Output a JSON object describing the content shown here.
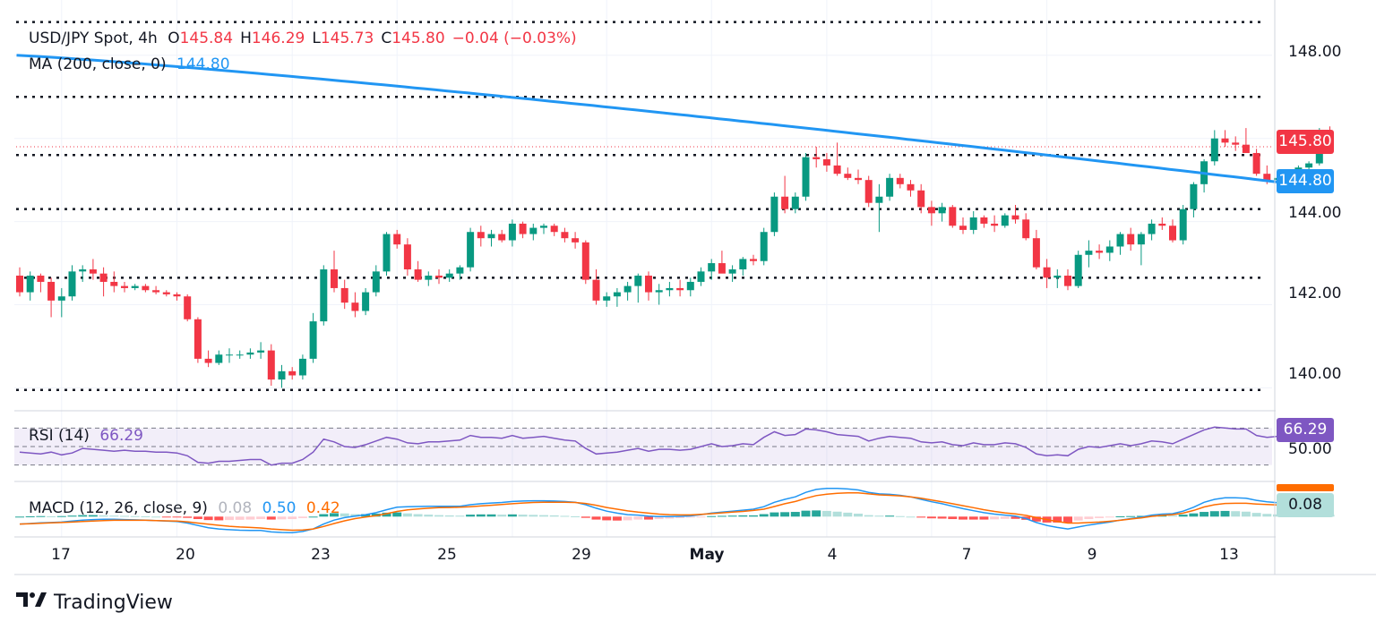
{
  "header": {
    "symbol": "USD/JPY Spot, 4h",
    "open_label": "O",
    "open": "145.84",
    "high_label": "H",
    "high": "146.29",
    "low_label": "L",
    "low": "145.73",
    "close_label": "C",
    "close": "145.80",
    "change": "−0.04 (−0.03%)"
  },
  "ma_legend": {
    "label": "MA (200, close, 0)",
    "value": "144.80"
  },
  "rsi_legend": {
    "label": "RSI (14)",
    "value": "66.29"
  },
  "macd_legend": {
    "label": "MACD (12, 26, close, 9)",
    "hist": "0.08",
    "macd": "0.50",
    "signal": "0.42"
  },
  "price_tags": {
    "last": "145.80",
    "ma": "144.80",
    "rsi": "66.29",
    "macd": "0.08",
    "rsi_axis": "50.00"
  },
  "colors": {
    "up": "#089981",
    "down": "#f23645",
    "ma": "#2196f3",
    "rsi": "#7e57c2",
    "signal": "#ff6d00",
    "macd_line": "#2196f3"
  },
  "brand": {
    "name": "TradingView"
  },
  "chart_data": {
    "type": "candlestick",
    "title": "USD/JPY Spot, 4h",
    "y_ticks": [
      "148.00",
      "144.00",
      "142.00",
      "140.00"
    ],
    "ylim": [
      139.6,
      148.9
    ],
    "x_ticks": [
      "17",
      "20",
      "23",
      "25",
      "29",
      "May",
      "4",
      "7",
      "9",
      "13"
    ],
    "x_tick_bar_index": [
      4,
      15,
      26,
      36,
      47,
      56,
      66,
      77,
      87,
      98
    ],
    "horizontal_levels": [
      148.8,
      147.0,
      145.6,
      144.3,
      142.65,
      139.95
    ],
    "ohlc": [
      [
        142.7,
        142.9,
        142.2,
        142.3
      ],
      [
        142.3,
        142.8,
        142.1,
        142.7
      ],
      [
        142.7,
        142.75,
        142.3,
        142.55
      ],
      [
        142.55,
        142.65,
        141.7,
        142.1
      ],
      [
        142.1,
        142.4,
        141.7,
        142.2
      ],
      [
        142.2,
        142.95,
        142.1,
        142.8
      ],
      [
        142.8,
        142.95,
        142.55,
        142.85
      ],
      [
        142.85,
        143.1,
        142.6,
        142.75
      ],
      [
        142.75,
        142.9,
        142.2,
        142.55
      ],
      [
        142.55,
        142.8,
        142.3,
        142.45
      ],
      [
        142.45,
        142.55,
        142.3,
        142.4
      ],
      [
        142.4,
        142.5,
        142.35,
        142.45
      ],
      [
        142.45,
        142.5,
        142.3,
        142.35
      ],
      [
        142.35,
        142.45,
        142.25,
        142.3
      ],
      [
        142.3,
        142.35,
        142.2,
        142.25
      ],
      [
        142.25,
        142.3,
        142.1,
        142.2
      ],
      [
        142.2,
        142.25,
        141.6,
        141.65
      ],
      [
        141.65,
        141.7,
        140.6,
        140.7
      ],
      [
        140.7,
        140.9,
        140.5,
        140.6
      ],
      [
        140.6,
        140.9,
        140.55,
        140.8
      ],
      [
        140.8,
        140.95,
        140.6,
        140.8
      ],
      [
        140.8,
        140.9,
        140.7,
        140.8
      ],
      [
        140.8,
        140.95,
        140.7,
        140.85
      ],
      [
        140.85,
        141.1,
        140.7,
        140.9
      ],
      [
        140.9,
        141.05,
        140.05,
        140.2
      ],
      [
        140.2,
        140.55,
        140.0,
        140.4
      ],
      [
        140.4,
        140.5,
        140.2,
        140.3
      ],
      [
        140.3,
        140.8,
        140.2,
        140.7
      ],
      [
        140.7,
        141.8,
        140.6,
        141.6
      ],
      [
        141.6,
        142.95,
        141.5,
        142.85
      ],
      [
        142.85,
        143.3,
        142.3,
        142.4
      ],
      [
        142.4,
        142.6,
        141.9,
        142.05
      ],
      [
        142.05,
        142.3,
        141.7,
        141.85
      ],
      [
        141.85,
        142.4,
        141.75,
        142.3
      ],
      [
        142.3,
        142.95,
        142.2,
        142.8
      ],
      [
        142.8,
        143.75,
        142.7,
        143.7
      ],
      [
        143.7,
        143.8,
        143.35,
        143.45
      ],
      [
        143.45,
        143.6,
        142.7,
        142.85
      ],
      [
        142.85,
        143.05,
        142.55,
        142.6
      ],
      [
        142.6,
        142.8,
        142.45,
        142.7
      ],
      [
        142.7,
        142.85,
        142.5,
        142.65
      ],
      [
        142.65,
        142.85,
        142.55,
        142.75
      ],
      [
        142.75,
        142.95,
        142.6,
        142.9
      ],
      [
        142.9,
        143.85,
        142.8,
        143.75
      ],
      [
        143.75,
        143.9,
        143.4,
        143.6
      ],
      [
        143.6,
        143.8,
        143.4,
        143.7
      ],
      [
        143.7,
        143.8,
        143.5,
        143.55
      ],
      [
        143.55,
        144.05,
        143.4,
        143.95
      ],
      [
        143.95,
        144.0,
        143.6,
        143.7
      ],
      [
        143.7,
        143.95,
        143.55,
        143.85
      ],
      [
        143.85,
        143.95,
        143.7,
        143.9
      ],
      [
        143.9,
        143.95,
        143.65,
        143.75
      ],
      [
        143.75,
        143.85,
        143.5,
        143.6
      ],
      [
        143.6,
        143.75,
        143.35,
        143.5
      ],
      [
        143.5,
        143.55,
        142.5,
        142.6
      ],
      [
        142.6,
        142.85,
        142.0,
        142.1
      ],
      [
        142.1,
        142.3,
        141.95,
        142.2
      ],
      [
        142.2,
        142.4,
        141.95,
        142.3
      ],
      [
        142.3,
        142.55,
        142.1,
        142.45
      ],
      [
        142.45,
        142.75,
        142.05,
        142.7
      ],
      [
        142.7,
        142.8,
        142.1,
        142.3
      ],
      [
        142.3,
        142.5,
        142.0,
        142.35
      ],
      [
        142.35,
        142.55,
        142.2,
        142.4
      ],
      [
        142.4,
        142.6,
        142.2,
        142.35
      ],
      [
        142.35,
        142.65,
        142.2,
        142.55
      ],
      [
        142.55,
        142.9,
        142.45,
        142.8
      ],
      [
        142.8,
        143.1,
        142.6,
        143.0
      ],
      [
        143.0,
        143.3,
        142.8,
        142.75
      ],
      [
        142.75,
        142.95,
        142.55,
        142.85
      ],
      [
        142.85,
        143.15,
        142.7,
        143.1
      ],
      [
        143.1,
        143.2,
        142.95,
        143.05
      ],
      [
        143.05,
        143.85,
        142.95,
        143.75
      ],
      [
        143.75,
        144.7,
        143.65,
        144.6
      ],
      [
        144.6,
        145.1,
        144.2,
        144.3
      ],
      [
        144.3,
        144.7,
        144.2,
        144.6
      ],
      [
        144.6,
        145.65,
        144.5,
        145.55
      ],
      [
        145.55,
        145.8,
        145.3,
        145.5
      ],
      [
        145.5,
        145.65,
        145.2,
        145.35
      ],
      [
        145.35,
        145.9,
        145.1,
        145.15
      ],
      [
        145.15,
        145.3,
        145.0,
        145.05
      ],
      [
        145.05,
        145.25,
        144.9,
        145.0
      ],
      [
        145.0,
        145.1,
        144.35,
        144.45
      ],
      [
        144.45,
        144.9,
        143.75,
        144.6
      ],
      [
        144.6,
        145.15,
        144.5,
        145.05
      ],
      [
        145.05,
        145.15,
        144.8,
        144.9
      ],
      [
        144.9,
        145.0,
        144.6,
        144.75
      ],
      [
        144.75,
        144.9,
        144.2,
        144.35
      ],
      [
        144.35,
        144.5,
        143.9,
        144.2
      ],
      [
        144.2,
        144.45,
        144.0,
        144.35
      ],
      [
        144.35,
        144.4,
        143.85,
        143.9
      ],
      [
        143.9,
        144.1,
        143.7,
        143.8
      ],
      [
        143.8,
        144.25,
        143.7,
        144.1
      ],
      [
        144.1,
        144.15,
        143.85,
        143.95
      ],
      [
        143.95,
        144.15,
        143.75,
        143.9
      ],
      [
        143.9,
        144.2,
        143.85,
        144.15
      ],
      [
        144.15,
        144.4,
        143.95,
        144.05
      ],
      [
        144.05,
        144.2,
        143.55,
        143.6
      ],
      [
        143.6,
        143.8,
        142.85,
        142.9
      ],
      [
        142.9,
        143.1,
        142.4,
        142.65
      ],
      [
        142.65,
        142.85,
        142.4,
        142.7
      ],
      [
        142.7,
        142.85,
        142.35,
        142.45
      ],
      [
        142.45,
        143.3,
        142.4,
        143.2
      ],
      [
        143.2,
        143.55,
        142.9,
        143.3
      ],
      [
        143.3,
        143.45,
        143.1,
        143.25
      ],
      [
        143.25,
        143.55,
        143.05,
        143.4
      ],
      [
        143.4,
        143.75,
        143.2,
        143.7
      ],
      [
        143.7,
        143.85,
        143.3,
        143.45
      ],
      [
        143.45,
        143.75,
        142.95,
        143.7
      ],
      [
        143.7,
        144.05,
        143.55,
        143.95
      ],
      [
        143.95,
        144.1,
        143.8,
        143.9
      ],
      [
        143.9,
        144.05,
        143.5,
        143.55
      ],
      [
        143.55,
        144.4,
        143.45,
        144.3
      ],
      [
        144.3,
        144.95,
        144.1,
        144.9
      ],
      [
        144.9,
        145.5,
        144.7,
        145.45
      ],
      [
        145.45,
        146.2,
        145.35,
        146.0
      ],
      [
        146.0,
        146.2,
        145.8,
        145.9
      ],
      [
        145.9,
        146.05,
        145.7,
        145.85
      ],
      [
        145.85,
        146.25,
        145.65,
        145.65
      ],
      [
        145.65,
        145.75,
        145.1,
        145.15
      ],
      [
        145.15,
        145.35,
        144.9,
        145.0
      ],
      [
        145.0,
        145.25,
        144.8,
        145.05
      ],
      [
        145.05,
        145.2,
        144.95,
        145.1
      ],
      [
        145.1,
        145.35,
        145.0,
        145.3
      ],
      [
        145.3,
        145.45,
        145.15,
        145.4
      ],
      [
        145.4,
        146.25,
        145.35,
        145.84
      ],
      [
        145.84,
        146.29,
        145.73,
        145.8
      ]
    ],
    "ma200": {
      "label": "MA (200, close, 0)",
      "start": 148.0,
      "end": 144.8
    },
    "rsi": {
      "label": "RSI (14)",
      "ylim": [
        20,
        80
      ],
      "levels": [
        70,
        50,
        30
      ],
      "values": [
        44,
        43,
        42,
        44,
        41,
        43,
        48,
        47,
        46,
        45,
        46,
        45,
        45,
        44,
        44,
        43,
        40,
        33,
        32,
        34,
        34,
        35,
        36,
        36,
        30,
        32,
        32,
        36,
        44,
        58,
        55,
        50,
        49,
        52,
        56,
        60,
        58,
        54,
        53,
        55,
        55,
        56,
        57,
        62,
        60,
        60,
        59,
        62,
        59,
        60,
        61,
        59,
        57,
        56,
        48,
        42,
        43,
        44,
        46,
        48,
        45,
        47,
        47,
        46,
        47,
        50,
        53,
        50,
        51,
        53,
        52,
        60,
        66,
        62,
        63,
        69,
        68,
        66,
        63,
        62,
        61,
        56,
        59,
        61,
        60,
        59,
        55,
        54,
        55,
        52,
        51,
        54,
        52,
        52,
        54,
        53,
        49,
        42,
        40,
        41,
        40,
        47,
        50,
        49,
        51,
        53,
        51,
        53,
        56,
        55,
        53,
        58,
        63,
        68,
        71,
        70,
        69,
        69,
        62,
        60,
        61,
        61,
        62,
        63,
        67,
        66.29
      ]
    },
    "macd": {
      "label": "MACD (12, 26, close, 9)",
      "ylim": [
        -0.75,
        1.35
      ],
      "hist": [
        0.0,
        0.01,
        0.02,
        0.01,
        0.02,
        0.04,
        0.06,
        0.06,
        0.05,
        0.04,
        0.03,
        0.02,
        0.01,
        0.0,
        -0.01,
        -0.02,
        -0.05,
        -0.1,
        -0.14,
        -0.15,
        -0.14,
        -0.13,
        -0.12,
        -0.1,
        -0.12,
        -0.11,
        -0.1,
        -0.06,
        0.0,
        0.1,
        0.14,
        0.13,
        0.1,
        0.1,
        0.12,
        0.16,
        0.17,
        0.13,
        0.1,
        0.08,
        0.06,
        0.05,
        0.04,
        0.08,
        0.09,
        0.09,
        0.08,
        0.09,
        0.08,
        0.07,
        0.06,
        0.05,
        0.03,
        0.01,
        -0.05,
        -0.12,
        -0.15,
        -0.16,
        -0.15,
        -0.12,
        -0.12,
        -0.1,
        -0.08,
        -0.06,
        -0.04,
        -0.01,
        0.02,
        0.03,
        0.04,
        0.05,
        0.05,
        0.1,
        0.17,
        0.18,
        0.19,
        0.24,
        0.25,
        0.23,
        0.2,
        0.16,
        0.12,
        0.06,
        0.04,
        0.04,
        0.02,
        0.0,
        -0.04,
        -0.07,
        -0.08,
        -0.1,
        -0.12,
        -0.12,
        -0.12,
        -0.11,
        -0.09,
        -0.09,
        -0.13,
        -0.2,
        -0.24,
        -0.24,
        -0.24,
        -0.16,
        -0.1,
        -0.06,
        -0.03,
        0.01,
        0.02,
        0.03,
        0.05,
        0.05,
        0.04,
        0.08,
        0.13,
        0.19,
        0.22,
        0.23,
        0.22,
        0.2,
        0.15,
        0.11,
        0.09,
        0.08,
        0.07,
        0.07,
        0.09,
        0.08
      ],
      "macd_line": [
        -0.3,
        -0.28,
        -0.25,
        -0.24,
        -0.22,
        -0.18,
        -0.14,
        -0.12,
        -0.11,
        -0.11,
        -0.12,
        -0.13,
        -0.14,
        -0.16,
        -0.18,
        -0.2,
        -0.26,
        -0.36,
        -0.45,
        -0.5,
        -0.53,
        -0.55,
        -0.56,
        -0.56,
        -0.62,
        -0.64,
        -0.65,
        -0.6,
        -0.5,
        -0.3,
        -0.14,
        -0.04,
        0.02,
        0.08,
        0.16,
        0.28,
        0.38,
        0.4,
        0.41,
        0.42,
        0.42,
        0.42,
        0.42,
        0.48,
        0.52,
        0.55,
        0.57,
        0.61,
        0.63,
        0.64,
        0.64,
        0.63,
        0.61,
        0.58,
        0.48,
        0.34,
        0.22,
        0.14,
        0.08,
        0.06,
        0.02,
        0.0,
        0.0,
        0.01,
        0.03,
        0.08,
        0.14,
        0.18,
        0.22,
        0.26,
        0.3,
        0.4,
        0.58,
        0.7,
        0.8,
        0.98,
        1.1,
        1.14,
        1.14,
        1.12,
        1.08,
        0.98,
        0.92,
        0.9,
        0.86,
        0.8,
        0.7,
        0.6,
        0.52,
        0.42,
        0.32,
        0.24,
        0.16,
        0.1,
        0.06,
        0.02,
        -0.08,
        -0.24,
        -0.36,
        -0.44,
        -0.5,
        -0.42,
        -0.34,
        -0.28,
        -0.22,
        -0.14,
        -0.08,
        -0.02,
        0.06,
        0.1,
        0.12,
        0.22,
        0.38,
        0.58,
        0.7,
        0.76,
        0.76,
        0.74,
        0.66,
        0.6,
        0.56,
        0.55,
        0.54,
        0.56,
        0.5
      ],
      "signal_line": [
        -0.3,
        -0.29,
        -0.27,
        -0.25,
        -0.24,
        -0.22,
        -0.2,
        -0.18,
        -0.16,
        -0.15,
        -0.15,
        -0.15,
        -0.15,
        -0.16,
        -0.17,
        -0.18,
        -0.21,
        -0.26,
        -0.31,
        -0.35,
        -0.39,
        -0.42,
        -0.44,
        -0.46,
        -0.5,
        -0.53,
        -0.55,
        -0.54,
        -0.5,
        -0.4,
        -0.28,
        -0.17,
        -0.08,
        -0.02,
        0.04,
        0.12,
        0.21,
        0.27,
        0.31,
        0.34,
        0.36,
        0.37,
        0.38,
        0.4,
        0.43,
        0.46,
        0.49,
        0.52,
        0.55,
        0.57,
        0.58,
        0.58,
        0.58,
        0.57,
        0.53,
        0.46,
        0.37,
        0.3,
        0.23,
        0.18,
        0.14,
        0.1,
        0.08,
        0.07,
        0.07,
        0.09,
        0.12,
        0.15,
        0.18,
        0.21,
        0.25,
        0.3,
        0.41,
        0.52,
        0.61,
        0.74,
        0.85,
        0.91,
        0.94,
        0.96,
        0.96,
        0.92,
        0.88,
        0.86,
        0.84,
        0.8,
        0.74,
        0.67,
        0.6,
        0.52,
        0.44,
        0.36,
        0.28,
        0.21,
        0.15,
        0.11,
        0.05,
        -0.04,
        -0.12,
        -0.2,
        -0.26,
        -0.26,
        -0.24,
        -0.22,
        -0.19,
        -0.15,
        -0.1,
        -0.05,
        0.01,
        0.05,
        0.08,
        0.14,
        0.25,
        0.39,
        0.48,
        0.53,
        0.54,
        0.54,
        0.51,
        0.49,
        0.47,
        0.47,
        0.47,
        0.47,
        0.42
      ]
    }
  }
}
